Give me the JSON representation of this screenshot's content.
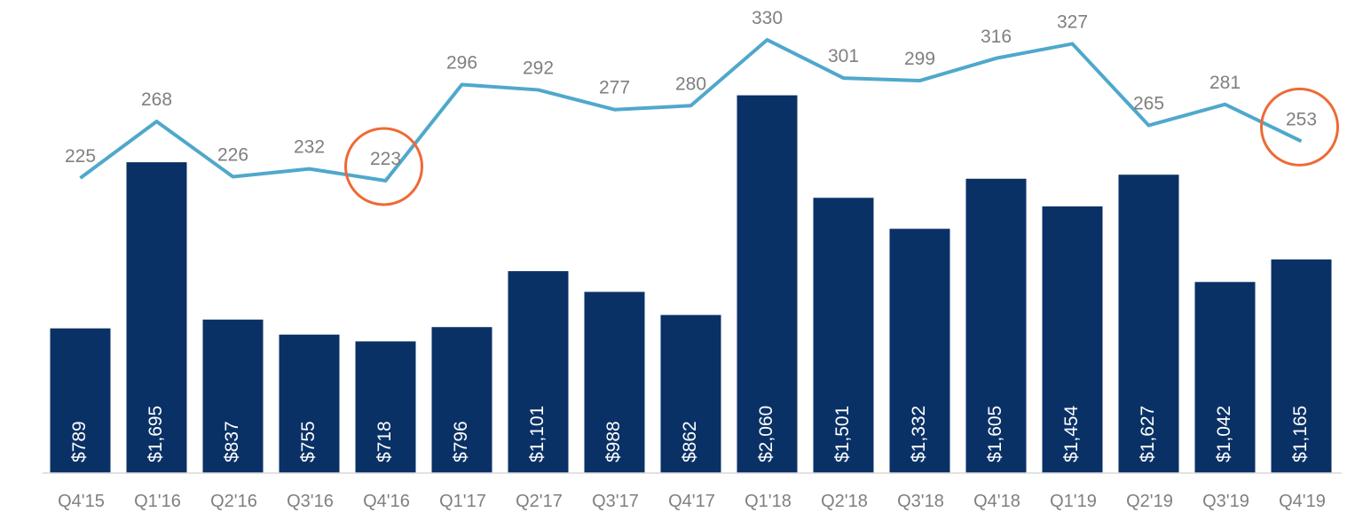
{
  "chart_data": {
    "type": "bar",
    "categories": [
      "Q4'15",
      "Q1'16",
      "Q2'16",
      "Q3'16",
      "Q4'16",
      "Q1'17",
      "Q2'17",
      "Q3'17",
      "Q4'17",
      "Q1'18",
      "Q2'18",
      "Q3'18",
      "Q4'18",
      "Q1'19",
      "Q2'19",
      "Q3'19",
      "Q4'19"
    ],
    "series": [
      {
        "type": "bar",
        "values": [
          789,
          1695,
          837,
          755,
          718,
          796,
          1101,
          988,
          862,
          2060,
          1501,
          1332,
          1605,
          1454,
          1627,
          1042,
          1165
        ],
        "labels": [
          "$789",
          "$1,695",
          "$837",
          "$755",
          "$718",
          "$796",
          "$1,101",
          "$988",
          "$862",
          "$2,060",
          "$1,501",
          "$1,332",
          "$1,605",
          "$1,454",
          "$1,627",
          "$1,042",
          "$1,165"
        ],
        "color": "#0a3166"
      },
      {
        "type": "line",
        "values": [
          225,
          268,
          226,
          232,
          223,
          296,
          292,
          277,
          280,
          330,
          301,
          299,
          316,
          327,
          265,
          281,
          253
        ],
        "color": "#4fa8cc"
      }
    ],
    "highlights": [
      {
        "category": "Q4'16",
        "shape": "circle",
        "color": "#ee6a35"
      },
      {
        "category": "Q4'19",
        "shape": "circle",
        "color": "#ee6a35"
      }
    ],
    "grid": false,
    "legend": "none"
  }
}
